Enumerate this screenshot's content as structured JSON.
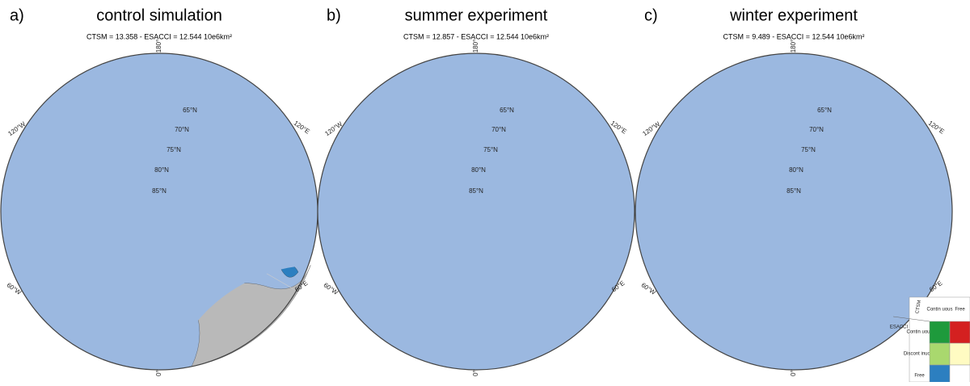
{
  "panels": [
    {
      "label": "a)",
      "title": "control simulation",
      "subtitle": "CTSM = 13.358 - ESACCI = 12.544 10e6km²"
    },
    {
      "label": "b)",
      "title": "summer experiment",
      "subtitle": "CTSM = 12.857 - ESACCI = 12.544 10e6km²"
    },
    {
      "label": "c)",
      "title": "winter experiment",
      "subtitle": "CTSM = 9.489 - ESACCI = 12.544 10e6km²"
    }
  ],
  "longitude_labels": [
    "180°",
    "120°W",
    "120°E",
    "60°W",
    "60°E",
    "0°"
  ],
  "latitude_labels": [
    "65°N",
    "70°N",
    "75°N",
    "80°N",
    "85°N"
  ],
  "legend": {
    "row_axis": "ESACCI",
    "column_axis": "CTSM",
    "columns": [
      "Contin uous",
      "Free"
    ],
    "rows": [
      "Contin uous",
      "Discont inuous",
      "Free"
    ]
  }
}
